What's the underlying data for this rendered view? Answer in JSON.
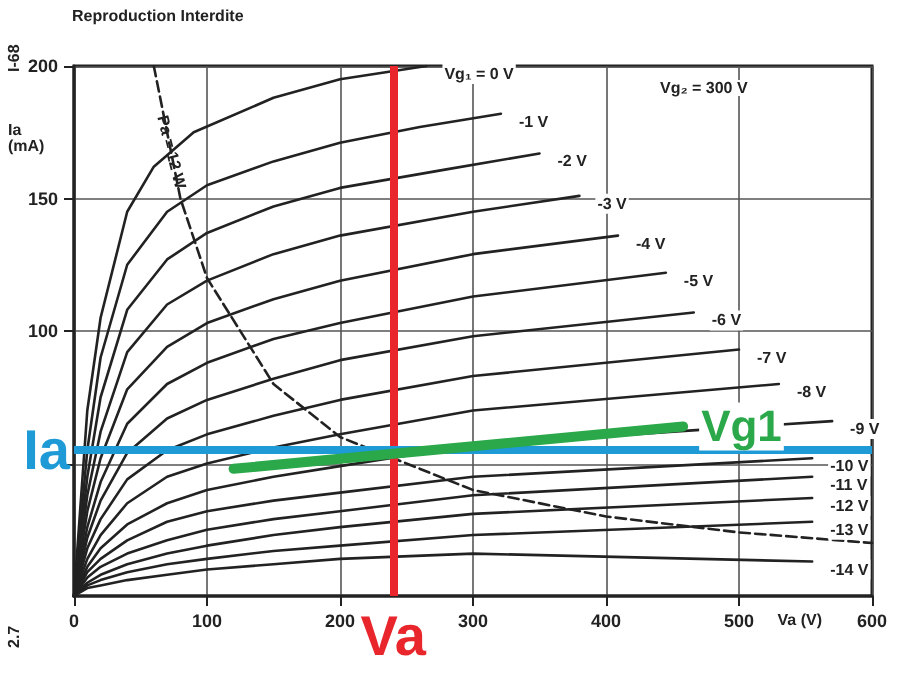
{
  "chart_data": {
    "type": "line",
    "xlabel": "Va (V)",
    "ylabel": "Ia (mA)",
    "xlim": [
      0,
      600
    ],
    "xticks": [
      0,
      100,
      200,
      300,
      400,
      500,
      600
    ],
    "ylim": [
      0,
      200
    ],
    "yticks": [
      {
        "value": 50,
        "label": null
      },
      100,
      150,
      200
    ],
    "grid": true,
    "legend": false,
    "marker": "none",
    "series": [
      {
        "name": "Vg₁ = 0 V",
        "color": "#222222",
        "line_style": "solid",
        "x": [
          0,
          10,
          20,
          40,
          60,
          90,
          150,
          200,
          265
        ],
        "values": [
          0,
          70,
          105,
          145,
          162,
          175,
          188,
          195,
          200
        ]
      },
      {
        "name": "-1 V",
        "color": "#222222",
        "line_style": "solid",
        "x": [
          0,
          10,
          20,
          40,
          70,
          100,
          150,
          200,
          260,
          321
        ],
        "values": [
          0,
          55,
          90,
          125,
          145,
          155,
          164,
          171,
          177,
          182
        ]
      },
      {
        "name": "-2 V",
        "color": "#222222",
        "line_style": "solid",
        "x": [
          0,
          10,
          20,
          40,
          70,
          100,
          150,
          200,
          280,
          350
        ],
        "values": [
          0,
          45,
          75,
          108,
          127,
          137,
          147,
          154,
          161,
          167
        ]
      },
      {
        "name": "-3 V",
        "color": "#222222",
        "line_style": "solid",
        "x": [
          0,
          10,
          20,
          40,
          70,
          100,
          150,
          200,
          300,
          380
        ],
        "values": [
          0,
          38,
          62,
          92,
          110,
          119,
          129,
          136,
          145,
          151
        ]
      },
      {
        "name": "-4 V",
        "color": "#222222",
        "line_style": "solid",
        "x": [
          0,
          10,
          20,
          40,
          70,
          100,
          150,
          200,
          300,
          409
        ],
        "values": [
          0,
          32,
          52,
          78,
          94,
          103,
          112,
          119,
          129,
          136
        ]
      },
      {
        "name": "-5 V",
        "color": "#222222",
        "line_style": "solid",
        "x": [
          0,
          10,
          20,
          40,
          70,
          100,
          150,
          200,
          300,
          445
        ],
        "values": [
          0,
          26,
          43,
          65,
          80,
          88,
          97,
          103,
          113,
          122
        ]
      },
      {
        "name": "-6 V",
        "color": "#222222",
        "line_style": "solid",
        "x": [
          0,
          10,
          20,
          40,
          70,
          100,
          150,
          200,
          300,
          466
        ],
        "values": [
          0,
          22,
          36,
          54,
          67,
          74,
          82,
          89,
          98,
          107
        ]
      },
      {
        "name": "-7 V",
        "color": "#222222",
        "line_style": "solid",
        "x": [
          0,
          10,
          20,
          40,
          70,
          100,
          150,
          200,
          300,
          500
        ],
        "values": [
          0,
          18,
          29,
          44,
          55,
          61,
          68,
          74,
          83,
          93
        ]
      },
      {
        "name": "-8 V",
        "color": "#222222",
        "line_style": "solid",
        "x": [
          0,
          10,
          20,
          40,
          70,
          100,
          150,
          200,
          300,
          530
        ],
        "values": [
          0,
          14,
          23,
          35,
          45,
          50,
          56,
          61,
          70,
          80
        ]
      },
      {
        "name": "-9 V",
        "color": "#222222",
        "line_style": "solid",
        "x": [
          0,
          10,
          20,
          40,
          70,
          100,
          150,
          200,
          300,
          570
        ],
        "values": [
          0,
          11,
          18,
          27,
          35,
          40,
          45,
          49,
          57,
          66
        ]
      },
      {
        "name": "-10 V",
        "color": "#222222",
        "line_style": "solid",
        "x": [
          0,
          10,
          20,
          40,
          70,
          100,
          150,
          200,
          300,
          555
        ],
        "values": [
          0,
          9,
          14,
          21,
          28,
          32,
          36,
          39,
          45,
          52
        ]
      },
      {
        "name": "-11 V",
        "color": "#222222",
        "line_style": "solid",
        "x": [
          0,
          10,
          20,
          40,
          70,
          100,
          150,
          200,
          300,
          555
        ],
        "values": [
          0,
          7,
          11,
          16,
          21,
          25,
          29,
          32,
          38,
          45
        ]
      },
      {
        "name": "-12 V",
        "color": "#222222",
        "line_style": "solid",
        "x": [
          0,
          10,
          20,
          40,
          70,
          100,
          150,
          200,
          300,
          555
        ],
        "values": [
          0,
          5,
          8,
          12,
          16,
          19,
          23,
          26,
          31,
          37
        ]
      },
      {
        "name": "-13 V",
        "color": "#222222",
        "line_style": "solid",
        "x": [
          0,
          10,
          20,
          40,
          70,
          100,
          150,
          200,
          300,
          555
        ],
        "values": [
          0,
          4,
          6,
          9,
          12,
          14,
          17,
          19,
          23,
          28
        ]
      },
      {
        "name": "-14 V",
        "color": "#222222",
        "line_style": "solid",
        "x": [
          0,
          10,
          20,
          40,
          70,
          100,
          150,
          200,
          300,
          555
        ],
        "values": [
          0,
          3,
          4,
          6,
          8,
          10,
          12,
          14,
          16,
          13
        ]
      },
      {
        "color": "#222222",
        "line_style": "dashed",
        "x": [
          60,
          80,
          100,
          150,
          200,
          300,
          400,
          500,
          600
        ],
        "values": [
          200,
          150,
          120,
          80,
          60,
          40,
          30,
          24,
          20
        ]
      },
      {
        "name": "Vg1",
        "color": "#2aa84a",
        "line_style": "solid",
        "x": [
          120,
          458
        ],
        "values": [
          48,
          64
        ]
      }
    ],
    "ref_lines": [
      {
        "axis": "x",
        "value": 240,
        "label": "Va",
        "color": "#e8262c"
      },
      {
        "axis": "y",
        "value": 55,
        "label": "Ia",
        "color": "#1e9ad6"
      }
    ],
    "annotations": [
      {
        "text": "Pa = 12 W",
        "x": 72,
        "y": 182
      },
      "Vg₂ = 300 V",
      "Reproduction Interdite",
      "I-68",
      "2.7"
    ]
  }
}
